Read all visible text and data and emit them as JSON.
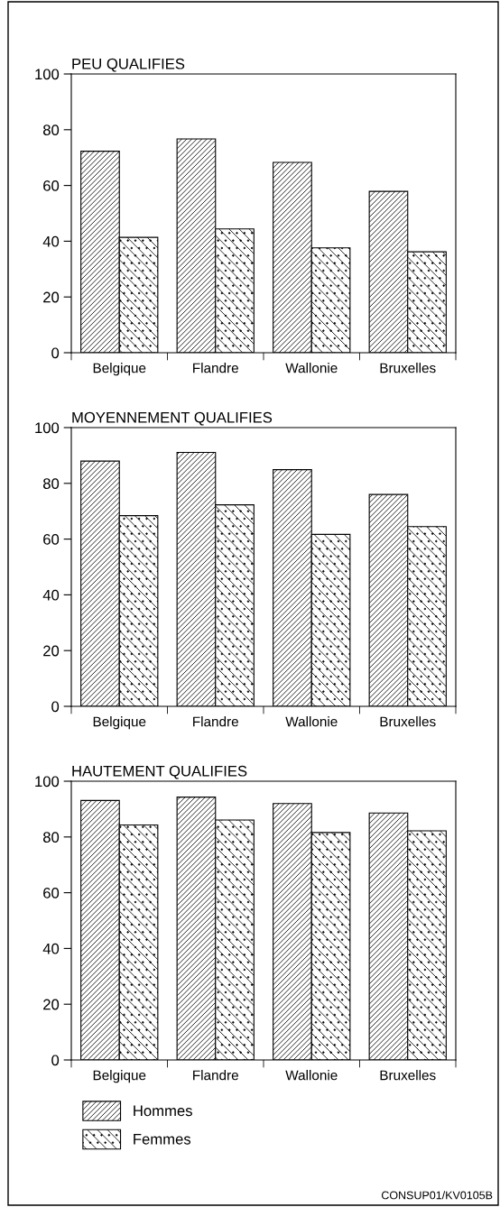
{
  "chart_data": [
    {
      "type": "bar",
      "title": "PEU QUALIFIES",
      "categories": [
        "Belgique",
        "Flandre",
        "Wallonie",
        "Bruxelles"
      ],
      "series": [
        {
          "color": "#000000",
          "values": [
            72.3,
            76.7,
            68.3,
            57.9
          ]
        },
        {
          "color": "#000000",
          "values": [
            41.4,
            44.4,
            37.6,
            36.2
          ]
        }
      ],
      "ylim": [
        0,
        100
      ],
      "yticks": [
        0,
        20,
        40,
        60,
        80,
        100
      ],
      "grid": false
    },
    {
      "type": "bar",
      "title": "MOYENNEMENT QUALIFIES",
      "categories": [
        "Belgique",
        "Flandre",
        "Wallonie",
        "Bruxelles"
      ],
      "series": [
        {
          "color": "#000000",
          "values": [
            88.0,
            91.1,
            84.9,
            76.0
          ]
        },
        {
          "color": "#000000",
          "values": [
            68.4,
            72.3,
            61.7,
            64.5
          ]
        }
      ],
      "ylim": [
        0,
        100
      ],
      "yticks": [
        0,
        20,
        40,
        60,
        80,
        100
      ],
      "grid": false
    },
    {
      "type": "bar",
      "title": "HAUTEMENT QUALIFIES",
      "categories": [
        "Belgique",
        "Flandre",
        "Wallonie",
        "Bruxelles"
      ],
      "series": [
        {
          "name": "Hommes",
          "color": "#000000",
          "values": [
            93.1,
            94.3,
            92.0,
            88.6
          ]
        },
        {
          "name": "Femmes",
          "color": "#000000",
          "values": [
            84.3,
            86.1,
            81.6,
            82.2
          ]
        }
      ],
      "ylim": [
        0,
        100
      ],
      "yticks": [
        0,
        20,
        40,
        60,
        80,
        100
      ],
      "grid": false,
      "legend": "bottom",
      "annotations": [
        "CONSUP01/KV0105B"
      ]
    }
  ]
}
